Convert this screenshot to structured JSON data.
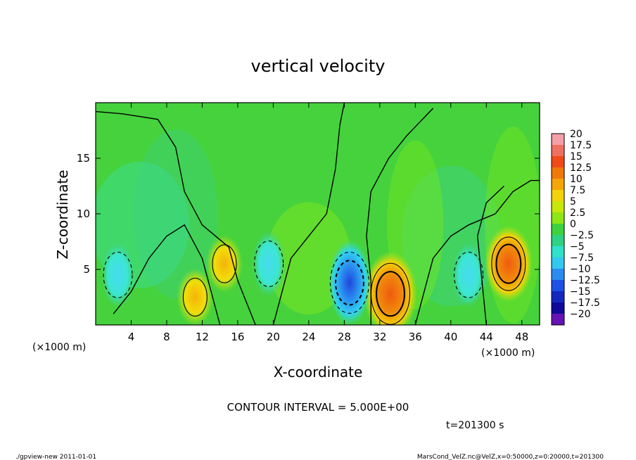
{
  "chart_data": {
    "type": "heatmap",
    "title": "vertical velocity",
    "xlabel": "X-coordinate",
    "ylabel": "Z-coordinate",
    "x_unit_left": "(×1000 m)",
    "x_unit_right": "(×1000 m)",
    "y_unit": "(×1000 m)",
    "xlim": [
      0,
      50
    ],
    "ylim": [
      0,
      20
    ],
    "xticks": [
      "4",
      "8",
      "12",
      "16",
      "20",
      "24",
      "28",
      "32",
      "36",
      "40",
      "44",
      "48"
    ],
    "yticks": [
      "5",
      "10",
      "15"
    ],
    "colorbar": {
      "labels": [
        "20",
        "17.5",
        "15",
        "12.5",
        "10",
        "7.5",
        "5",
        "2.5",
        "0",
        "−2.5",
        "−5",
        "−7.5",
        "−10",
        "−12.5",
        "−15",
        "−17.5",
        "−20"
      ],
      "colors": [
        "#f4a0a8",
        "#f07060",
        "#f04a18",
        "#f0780a",
        "#f5a50a",
        "#f2d20a",
        "#c8e60a",
        "#8ee614",
        "#3ed23c",
        "#2ed282",
        "#30e0c8",
        "#32c8f0",
        "#2a8cf0",
        "#1e50e6",
        "#1428be",
        "#100a9a",
        "#6414b4"
      ]
    },
    "features": [
      {
        "kind": "updraft",
        "x": 33.2,
        "z": 2.8,
        "peak": 12.5
      },
      {
        "kind": "updraft",
        "x": 46.5,
        "z": 5.5,
        "peak": 10
      },
      {
        "kind": "updraft",
        "x": 11.2,
        "z": 2.5,
        "peak": 5
      },
      {
        "kind": "updraft",
        "x": 14.5,
        "z": 5.5,
        "peak": 5
      },
      {
        "kind": "downdraft",
        "x": 28.6,
        "z": 3.8,
        "peak": -12.5
      },
      {
        "kind": "downdraft",
        "x": 2.5,
        "z": 4.5,
        "peak": -7.5
      },
      {
        "kind": "downdraft",
        "x": 19.5,
        "z": 5.5,
        "peak": -7.5
      },
      {
        "kind": "downdraft",
        "x": 42.0,
        "z": 4.5,
        "peak": -7.5
      }
    ]
  },
  "contour_interval": "CONTOUR INTERVAL = 5.000E+00",
  "time_label": "t=201300 s",
  "footer": {
    "left": "./gpview-new   2011-01-01",
    "right": "MarsCond_VelZ.nc@VelZ,x=0:50000,z=0:20000,t=201300"
  }
}
